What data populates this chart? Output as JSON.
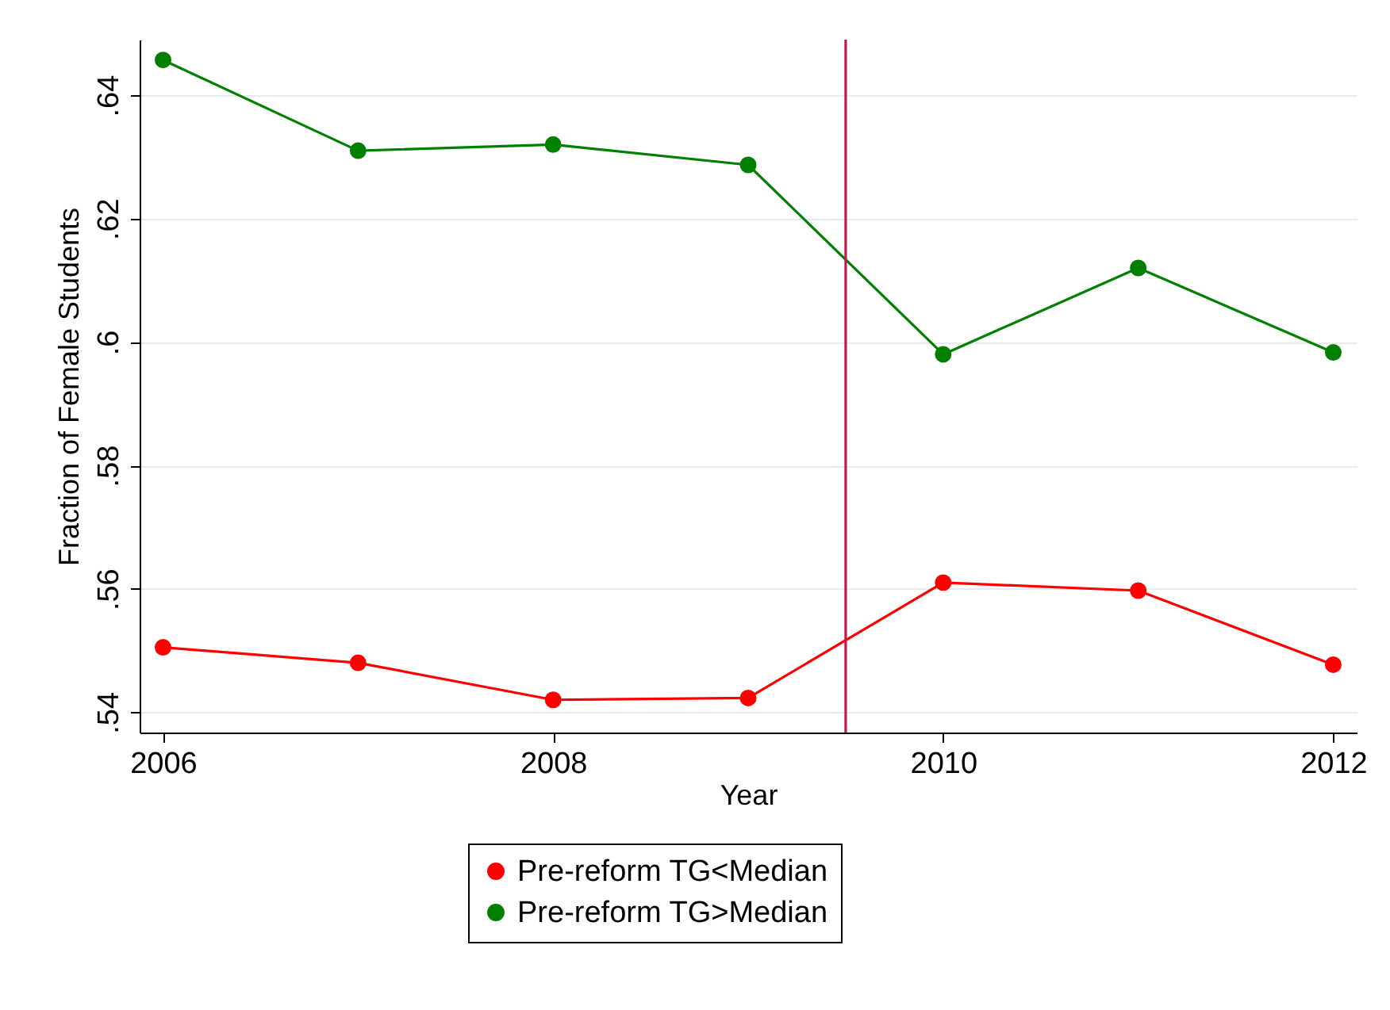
{
  "chart_data": {
    "type": "line",
    "xlabel": "Year",
    "ylabel": "Fraction of Female Students",
    "x": [
      2006,
      2007,
      2008,
      2009,
      2010,
      2011,
      2012
    ],
    "series": [
      {
        "name": "Pre-reform TG<Median",
        "color": "#ff0000",
        "values": [
          0.5505,
          0.548,
          0.542,
          0.5423,
          0.561,
          0.5597,
          0.5477
        ]
      },
      {
        "name": "Pre-reform TG>Median",
        "color": "#008000",
        "values": [
          0.6457,
          0.631,
          0.632,
          0.6287,
          0.598,
          0.612,
          0.5983
        ]
      }
    ],
    "xlim": [
      2005.88,
      2012.12
    ],
    "xticks": [
      2006,
      2008,
      2010,
      2012
    ],
    "ylim": [
      0.5367,
      0.649
    ],
    "yticks": [
      {
        "value": 0.54,
        "label": ".54"
      },
      {
        "value": 0.56,
        "label": ".56"
      },
      {
        "value": 0.58,
        "label": ".58"
      },
      {
        "value": 0.6,
        "label": ".6"
      },
      {
        "value": 0.62,
        "label": ".62"
      },
      {
        "value": 0.64,
        "label": ".64"
      }
    ],
    "ref_lines": [
      {
        "axis": "x",
        "value": 2009.5,
        "color": "#c0184a"
      }
    ],
    "grid": "y",
    "legend": "bottom",
    "marker": "circle",
    "line_style": "solid"
  }
}
